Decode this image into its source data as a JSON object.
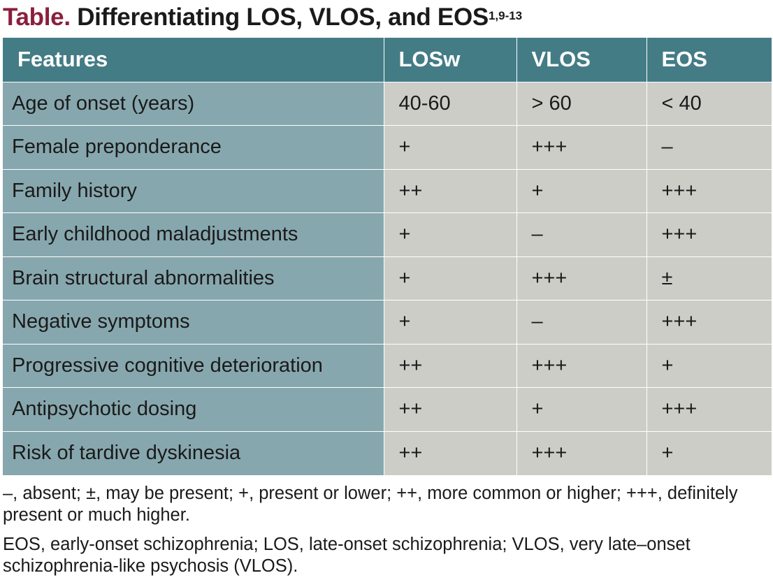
{
  "title": {
    "label": "Table.",
    "text": "Differentiating LOS, VLOS, and EOS",
    "superscript": "1,9-13"
  },
  "colors": {
    "title_label": "#8a1f3d",
    "header_bg": "#447c86",
    "feature_col_bg": "#87a7ae",
    "cell_bg": "#cdcdc8"
  },
  "table": {
    "headers": [
      "Features",
      "LOSw",
      "VLOS",
      "EOS"
    ],
    "rows": [
      [
        "Age of onset (years)",
        "40-60",
        "> 60",
        "< 40"
      ],
      [
        "Female preponderance",
        "+",
        "+++",
        "–"
      ],
      [
        "Family history",
        "++",
        "+",
        "+++"
      ],
      [
        "Early childhood maladjustments",
        "+",
        "–",
        "+++"
      ],
      [
        "Brain structural abnormalities",
        "+",
        "+++",
        "±"
      ],
      [
        "Negative symptoms",
        "+",
        "–",
        "+++"
      ],
      [
        "Progressive cognitive deterioration",
        "++",
        "+++",
        "+"
      ],
      [
        "Antipsychotic dosing",
        "++",
        "+",
        "+++"
      ],
      [
        "Risk of tardive dyskinesia",
        "++",
        "+++",
        "+"
      ]
    ]
  },
  "notes": {
    "legend": "–, absent; ±, may be present; +, present or lower; ++, more common or higher; +++, definitely present or much higher.",
    "abbreviations": "EOS, early-onset schizophrenia; LOS, late-onset schizophrenia; VLOS, very late–onset schizophrenia-like psychosis (VLOS)."
  }
}
